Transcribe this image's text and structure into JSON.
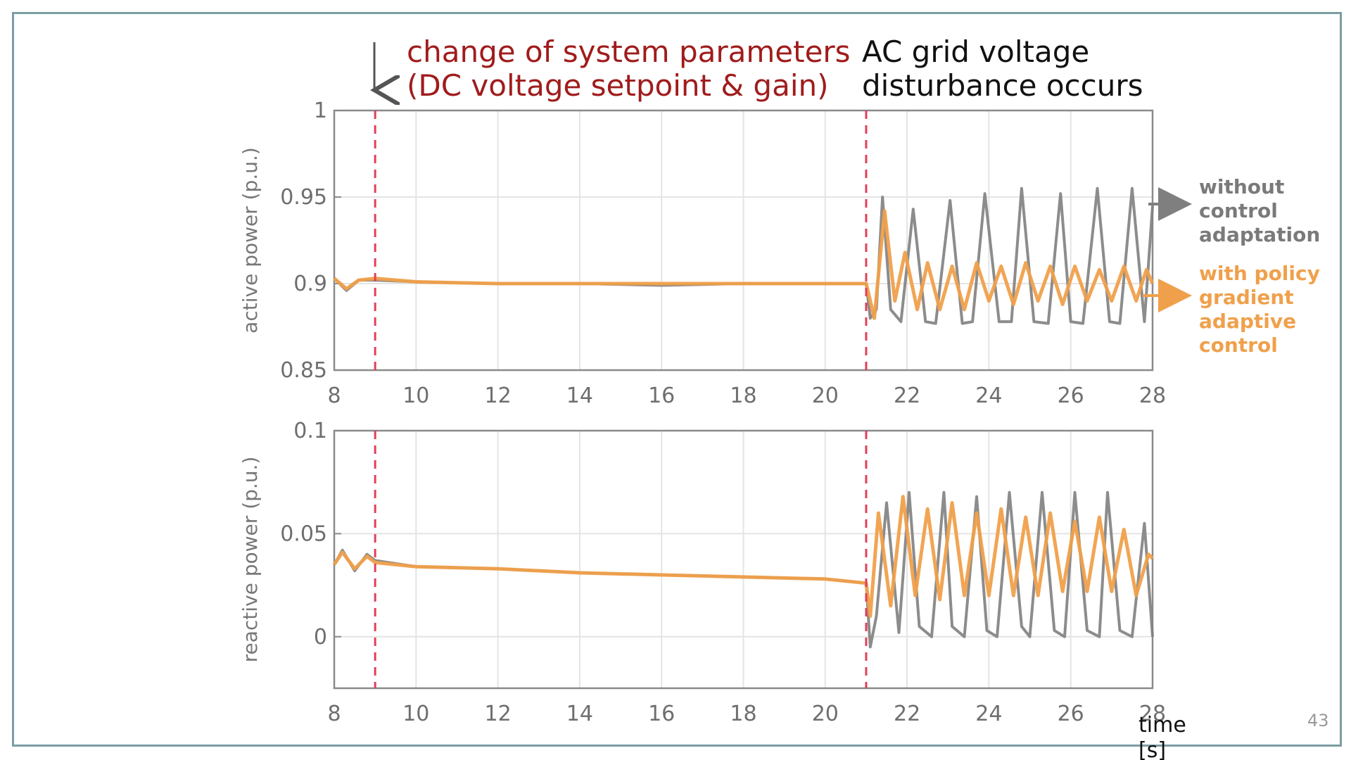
{
  "slide": {
    "annotation_red_line1": "change of system parameters",
    "annotation_red_line2": "(DC voltage setpoint & gain)",
    "annotation_black_line1": "AC grid voltage",
    "annotation_black_line2": "disturbance occurs",
    "legend_gray_line1": "without",
    "legend_gray_line2": "control",
    "legend_gray_line3": "adaptation",
    "legend_orange_line1": "with policy",
    "legend_orange_line2": "gradient",
    "legend_orange_line3": "adaptive",
    "legend_orange_line4": "control",
    "x_unit_line1": "time",
    "x_unit_line2": "[s]",
    "page_number": "43",
    "colors": {
      "frame": "#7b9da3",
      "baseline": "#7f7f7f",
      "adaptive": "#f0a04b",
      "event_line": "#e0405a",
      "annotation_red": "#a01c1c"
    }
  },
  "chart_data": [
    {
      "type": "line",
      "ylabel": "active power (p.u.)",
      "xlabel": "",
      "xlim": [
        8,
        28
      ],
      "ylim": [
        0.85,
        1
      ],
      "xticks": [
        "8",
        "10",
        "12",
        "14",
        "16",
        "18",
        "20",
        "22",
        "24",
        "26",
        "28"
      ],
      "yticks": [
        "0.85",
        "0.9",
        "0.95",
        "1"
      ],
      "grid": true,
      "event_lines_x": [
        9,
        21
      ],
      "series": [
        {
          "name": "without control adaptation",
          "color": "#7f7f7f",
          "x": [
            8,
            8.3,
            8.6,
            9,
            10,
            12,
            14,
            16,
            18,
            20,
            21,
            21.1,
            21.25,
            21.4,
            21.6,
            21.85,
            22.15,
            22.45,
            22.7,
            23.05,
            23.35,
            23.6,
            23.9,
            24.25,
            24.55,
            24.8,
            25.1,
            25.45,
            25.75,
            26.0,
            26.3,
            26.65,
            26.95,
            27.2,
            27.5,
            27.8,
            28
          ],
          "y": [
            0.903,
            0.896,
            0.902,
            0.902,
            0.901,
            0.9,
            0.9,
            0.899,
            0.9,
            0.9,
            0.9,
            0.88,
            0.885,
            0.95,
            0.885,
            0.878,
            0.943,
            0.878,
            0.877,
            0.948,
            0.877,
            0.878,
            0.952,
            0.878,
            0.878,
            0.955,
            0.878,
            0.877,
            0.952,
            0.878,
            0.877,
            0.955,
            0.878,
            0.877,
            0.955,
            0.878,
            0.945
          ]
        },
        {
          "name": "with policy gradient adaptive control",
          "color": "#f0a04b",
          "x": [
            8,
            8.3,
            8.6,
            9,
            10,
            12,
            14,
            16,
            18,
            20,
            21,
            21.2,
            21.45,
            21.7,
            21.95,
            22.25,
            22.5,
            22.8,
            23.1,
            23.4,
            23.7,
            24.0,
            24.3,
            24.6,
            24.9,
            25.2,
            25.5,
            25.8,
            26.1,
            26.4,
            26.7,
            27.0,
            27.3,
            27.6,
            27.85,
            28
          ],
          "y": [
            0.903,
            0.897,
            0.902,
            0.903,
            0.901,
            0.9,
            0.9,
            0.9,
            0.9,
            0.9,
            0.9,
            0.88,
            0.942,
            0.89,
            0.918,
            0.885,
            0.912,
            0.885,
            0.91,
            0.885,
            0.912,
            0.89,
            0.91,
            0.888,
            0.912,
            0.89,
            0.91,
            0.888,
            0.91,
            0.89,
            0.908,
            0.89,
            0.91,
            0.89,
            0.908,
            0.9
          ]
        }
      ]
    },
    {
      "type": "line",
      "ylabel": "reactive power (p.u.)",
      "xlabel": "time [s]",
      "xlim": [
        8,
        28
      ],
      "ylim": [
        -0.025,
        0.1
      ],
      "xticks": [
        "8",
        "10",
        "12",
        "14",
        "16",
        "18",
        "20",
        "22",
        "24",
        "26",
        "28"
      ],
      "yticks": [
        "0",
        "0.05",
        "0.1"
      ],
      "grid": true,
      "event_lines_x": [
        9,
        21
      ],
      "series": [
        {
          "name": "without control adaptation",
          "color": "#7f7f7f",
          "x": [
            8,
            8.2,
            8.5,
            8.8,
            9,
            10,
            12,
            14,
            16,
            18,
            20,
            21,
            21.1,
            21.25,
            21.5,
            21.8,
            22.05,
            22.3,
            22.6,
            22.9,
            23.1,
            23.4,
            23.7,
            23.95,
            24.2,
            24.5,
            24.8,
            25.0,
            25.3,
            25.6,
            25.85,
            26.1,
            26.4,
            26.7,
            26.9,
            27.2,
            27.5,
            27.8,
            28
          ],
          "y": [
            0.035,
            0.042,
            0.032,
            0.04,
            0.037,
            0.034,
            0.033,
            0.031,
            0.03,
            0.029,
            0.028,
            0.026,
            -0.005,
            0.01,
            0.065,
            0.002,
            0.07,
            0.005,
            0.0,
            0.07,
            0.005,
            0.0,
            0.068,
            0.003,
            0.0,
            0.07,
            0.005,
            0.0,
            0.07,
            0.003,
            0.0,
            0.07,
            0.003,
            0.0,
            0.07,
            0.003,
            0.0,
            0.055,
            0.0
          ]
        },
        {
          "name": "with policy gradient adaptive control",
          "color": "#f0a04b",
          "x": [
            8,
            8.2,
            8.5,
            8.8,
            9,
            10,
            12,
            14,
            16,
            18,
            20,
            21,
            21.1,
            21.3,
            21.6,
            21.9,
            22.2,
            22.5,
            22.8,
            23.1,
            23.4,
            23.7,
            24.0,
            24.3,
            24.6,
            24.9,
            25.2,
            25.5,
            25.8,
            26.1,
            26.4,
            26.7,
            27.0,
            27.3,
            27.6,
            27.9,
            28
          ],
          "y": [
            0.035,
            0.041,
            0.033,
            0.039,
            0.036,
            0.034,
            0.033,
            0.031,
            0.03,
            0.029,
            0.028,
            0.026,
            0.01,
            0.06,
            0.015,
            0.068,
            0.02,
            0.062,
            0.018,
            0.065,
            0.02,
            0.06,
            0.02,
            0.062,
            0.02,
            0.058,
            0.02,
            0.06,
            0.022,
            0.056,
            0.022,
            0.058,
            0.022,
            0.052,
            0.02,
            0.04,
            0.038
          ]
        }
      ]
    }
  ]
}
